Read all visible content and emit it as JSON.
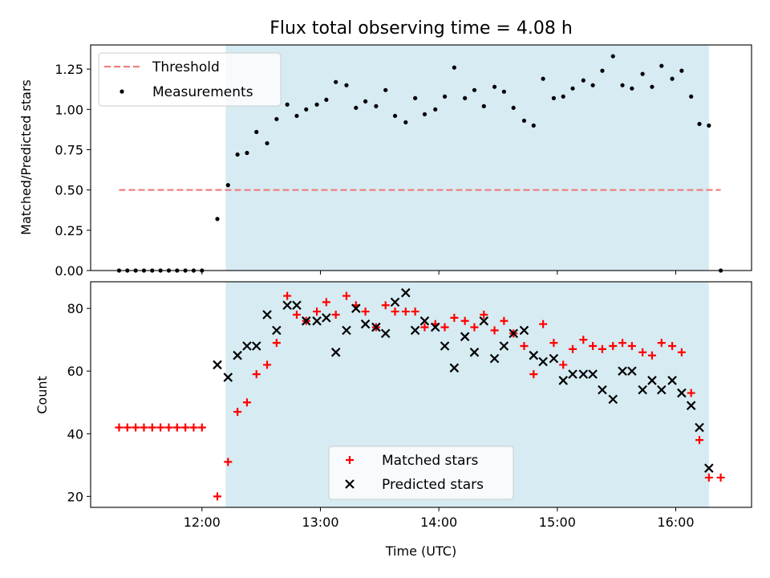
{
  "chart_data": [
    {
      "type": "scatter",
      "title": "Flux total observing time = 4.08 h",
      "xlabel": "",
      "ylabel": "Matched/Predicted stars",
      "xlim": [
        11.06,
        16.64
      ],
      "ylim": [
        0.0,
        1.4
      ],
      "yticks": [
        0.0,
        0.25,
        0.5,
        0.75,
        1.0,
        1.25
      ],
      "ytick_labels": [
        "0.00",
        "0.25",
        "0.50",
        "0.75",
        "1.00",
        "1.25"
      ],
      "shaded_interval": [
        12.2,
        16.28
      ],
      "threshold": {
        "name": "Threshold",
        "value": 0.5,
        "x_range": [
          11.3,
          16.38
        ],
        "color": "#f08080"
      },
      "legend": {
        "position": "top-left",
        "entries": [
          "Threshold",
          "Measurements"
        ]
      },
      "series": [
        {
          "name": "Measurements",
          "color": "#000000",
          "x": [
            11.3,
            11.37,
            11.44,
            11.51,
            11.58,
            11.65,
            11.72,
            11.79,
            11.86,
            11.93,
            12.0,
            12.13,
            12.22,
            12.3,
            12.38,
            12.46,
            12.55,
            12.63,
            12.72,
            12.8,
            12.88,
            12.97,
            13.05,
            13.13,
            13.22,
            13.3,
            13.38,
            13.47,
            13.55,
            13.63,
            13.72,
            13.8,
            13.88,
            13.97,
            14.05,
            14.13,
            14.22,
            14.3,
            14.38,
            14.47,
            14.55,
            14.63,
            14.72,
            14.8,
            14.88,
            14.97,
            15.05,
            15.13,
            15.22,
            15.3,
            15.38,
            15.47,
            15.55,
            15.63,
            15.72,
            15.8,
            15.88,
            15.97,
            16.05,
            16.13,
            16.2,
            16.28,
            16.38
          ],
          "values": [
            0.0,
            0.0,
            0.0,
            0.0,
            0.0,
            0.0,
            0.0,
            0.0,
            0.0,
            0.0,
            0.0,
            0.32,
            0.53,
            0.72,
            0.73,
            0.86,
            0.79,
            0.94,
            1.03,
            0.96,
            1.0,
            1.03,
            1.06,
            1.17,
            1.15,
            1.01,
            1.05,
            1.02,
            1.12,
            0.96,
            0.92,
            1.07,
            0.97,
            1.0,
            1.08,
            1.26,
            1.07,
            1.12,
            1.02,
            1.14,
            1.11,
            1.01,
            0.93,
            0.9,
            1.19,
            1.07,
            1.08,
            1.13,
            1.18,
            1.15,
            1.24,
            1.33,
            1.15,
            1.13,
            1.22,
            1.14,
            1.27,
            1.19,
            1.24,
            1.08,
            0.91,
            0.9,
            0.0
          ]
        }
      ]
    },
    {
      "type": "scatter",
      "title": "",
      "xlabel": "Time (UTC)",
      "ylabel": "Count",
      "xlim": [
        11.06,
        16.64
      ],
      "ylim": [
        16.5,
        88.5
      ],
      "yticks": [
        20,
        40,
        60,
        80
      ],
      "ytick_labels": [
        "20",
        "40",
        "60",
        "80"
      ],
      "xticks": [
        12,
        13,
        14,
        15,
        16
      ],
      "xtick_labels": [
        "12:00",
        "13:00",
        "14:00",
        "15:00",
        "16:00"
      ],
      "shaded_interval": [
        12.2,
        16.28
      ],
      "legend": {
        "position": "lower-center",
        "entries": [
          "Matched stars",
          "Predicted stars"
        ]
      },
      "series": [
        {
          "name": "Matched stars",
          "marker": "plus",
          "color": "#ff0000",
          "x": [
            11.3,
            11.37,
            11.44,
            11.51,
            11.58,
            11.65,
            11.72,
            11.79,
            11.86,
            11.93,
            12.0,
            12.13,
            12.22,
            12.3,
            12.38,
            12.46,
            12.55,
            12.63,
            12.72,
            12.8,
            12.88,
            12.97,
            13.05,
            13.13,
            13.22,
            13.3,
            13.38,
            13.47,
            13.55,
            13.63,
            13.72,
            13.8,
            13.88,
            13.97,
            14.05,
            14.13,
            14.22,
            14.3,
            14.38,
            14.47,
            14.55,
            14.63,
            14.72,
            14.8,
            14.88,
            14.97,
            15.05,
            15.13,
            15.22,
            15.3,
            15.38,
            15.47,
            15.55,
            15.63,
            15.72,
            15.8,
            15.88,
            15.97,
            16.05,
            16.13,
            16.2,
            16.28,
            16.38
          ],
          "values": [
            42,
            42,
            42,
            42,
            42,
            42,
            42,
            42,
            42,
            42,
            42,
            20,
            31,
            47,
            50,
            59,
            62,
            69,
            84,
            78,
            76,
            79,
            82,
            78,
            84,
            81,
            79,
            74,
            81,
            79,
            79,
            79,
            74,
            75,
            74,
            77,
            76,
            74,
            78,
            73,
            76,
            72,
            68,
            59,
            75,
            69,
            62,
            67,
            70,
            68,
            67,
            68,
            69,
            68,
            66,
            65,
            69,
            68,
            66,
            53,
            38,
            26,
            26
          ]
        },
        {
          "name": "Predicted stars",
          "marker": "x",
          "color": "#000000",
          "x": [
            12.13,
            12.22,
            12.3,
            12.38,
            12.46,
            12.55,
            12.63,
            12.72,
            12.8,
            12.88,
            12.97,
            13.05,
            13.13,
            13.22,
            13.3,
            13.38,
            13.47,
            13.55,
            13.63,
            13.72,
            13.8,
            13.88,
            13.97,
            14.05,
            14.13,
            14.22,
            14.3,
            14.38,
            14.47,
            14.55,
            14.63,
            14.72,
            14.8,
            14.88,
            14.97,
            15.05,
            15.13,
            15.22,
            15.3,
            15.38,
            15.47,
            15.55,
            15.63,
            15.72,
            15.8,
            15.88,
            15.97,
            16.05,
            16.13,
            16.2,
            16.28
          ],
          "values": [
            62,
            58,
            65,
            68,
            68,
            78,
            73,
            81,
            81,
            76,
            76,
            77,
            66,
            73,
            80,
            75,
            74,
            72,
            82,
            85,
            73,
            76,
            74,
            68,
            61,
            71,
            66,
            76,
            64,
            68,
            72,
            73,
            65,
            63,
            64,
            57,
            59,
            59,
            59,
            54,
            51,
            60,
            60,
            54,
            57,
            54,
            57,
            53,
            49,
            42,
            29
          ]
        }
      ]
    }
  ]
}
